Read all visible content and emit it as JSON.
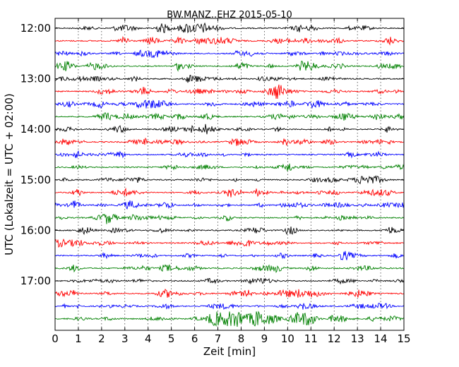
{
  "chart_data": {
    "type": "line",
    "title": "BW.MANZ..EHZ 2015-05-10",
    "xlabel": "Zeit  [min]",
    "ylabel": "UTC (Lokalzeit = UTC + 02:00)",
    "xlim": [
      0,
      15
    ],
    "xticks": [
      "0",
      "1",
      "2",
      "3",
      "4",
      "5",
      "6",
      "7",
      "8",
      "9",
      "10",
      "11",
      "12",
      "13",
      "14",
      "15"
    ],
    "yticks": [
      "12:00",
      "13:00",
      "14:00",
      "15:00",
      "16:00",
      "17:00"
    ],
    "grid": "vertical dotted at each minute",
    "trace_interval_min": 15,
    "trace_colors": [
      "#000000",
      "#ff0000",
      "#0000ff",
      "#008000"
    ],
    "traces": [
      "12:00",
      "12:15",
      "12:30",
      "12:45",
      "13:00",
      "13:15",
      "13:30",
      "13:45",
      "14:00",
      "14:15",
      "14:30",
      "14:45",
      "15:00",
      "15:15",
      "15:30",
      "15:45",
      "16:00",
      "16:15",
      "16:30",
      "16:45",
      "17:00",
      "17:15",
      "17:30",
      "17:45"
    ]
  }
}
